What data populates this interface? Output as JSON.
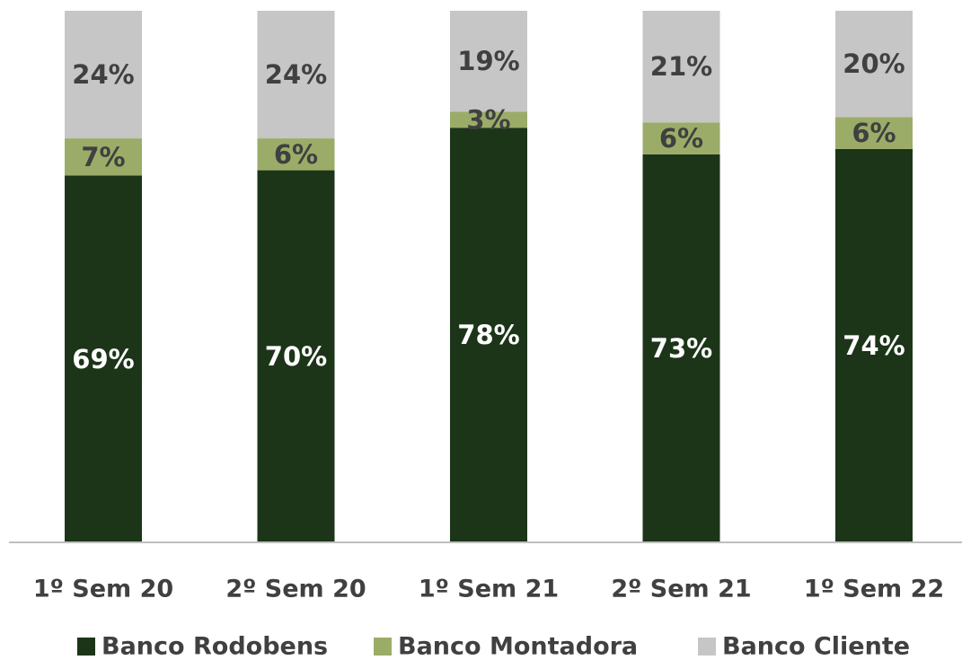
{
  "chart_data": {
    "type": "bar",
    "stacked": true,
    "percent_stacked": true,
    "categories": [
      "1º Sem 20",
      "2º Sem 20",
      "1º Sem 21",
      "2º Sem 21",
      "1º Sem 22"
    ],
    "series": [
      {
        "name": "Banco Rodobens",
        "values": [
          69,
          70,
          78,
          73,
          74
        ],
        "labels": [
          "69%",
          "70%",
          "78%",
          "73%",
          "74%"
        ],
        "color": "#1c3519",
        "label_color": "#ffffff"
      },
      {
        "name": "Banco Montadora",
        "values": [
          7,
          6,
          3,
          6,
          6
        ],
        "labels": [
          "7%",
          "6%",
          "3%",
          "6%",
          "6%"
        ],
        "color": "#9bac68",
        "label_color": "#404040"
      },
      {
        "name": "Banco Cliente",
        "values": [
          24,
          24,
          19,
          21,
          20
        ],
        "labels": [
          "24%",
          "24%",
          "19%",
          "21%",
          "20%"
        ],
        "color": "#c6c6c6",
        "label_color": "#404040"
      }
    ],
    "ylim": [
      0,
      100
    ],
    "grid": false,
    "legend": "bottom",
    "title": "",
    "xlabel": "",
    "ylabel": ""
  }
}
